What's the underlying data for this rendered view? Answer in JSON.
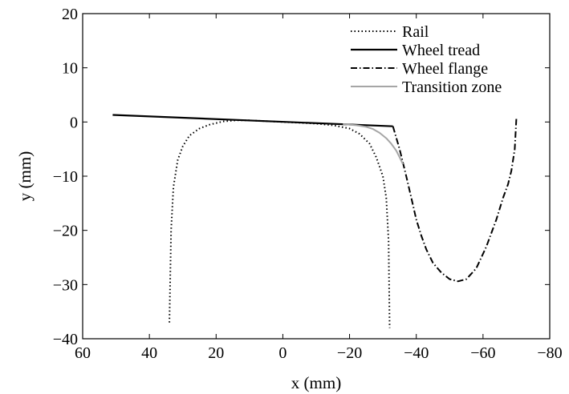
{
  "chart_data": {
    "type": "line",
    "title": "",
    "xlabel": "x (mm)",
    "ylabel": "y (mm)",
    "xlim": [
      60,
      -80
    ],
    "ylim": [
      -40,
      20
    ],
    "x_reversed": true,
    "xticks": [
      60,
      40,
      20,
      0,
      -20,
      -40,
      -60,
      -80
    ],
    "xtick_labels": [
      "60",
      "40",
      "20",
      "0",
      "−20",
      "−40",
      "−60",
      "−80"
    ],
    "yticks": [
      -40,
      -30,
      -20,
      -10,
      0,
      10,
      20
    ],
    "ytick_labels": [
      "−40",
      "−30",
      "−20",
      "−10",
      "0",
      "10",
      "20"
    ],
    "grid": false,
    "legend_position": "top-right",
    "series": [
      {
        "name": "Rail",
        "style": "dotted",
        "color": "#000000",
        "x": [
          34,
          33.5,
          32.8,
          31.5,
          30,
          28,
          25,
          22,
          18,
          14,
          10,
          5,
          0,
          -5,
          -10,
          -15,
          -20,
          -23,
          -26,
          -28,
          -30,
          -31,
          -31.7,
          -32
        ],
        "y": [
          -37,
          -20,
          -12,
          -7,
          -4.5,
          -2.5,
          -1.2,
          -0.5,
          0.1,
          0.3,
          0.3,
          0.15,
          0,
          -0.15,
          -0.3,
          -0.6,
          -1.2,
          -2.2,
          -4,
          -6.5,
          -10,
          -14,
          -22,
          -38
        ]
      },
      {
        "name": "Wheel tread",
        "style": "solid",
        "color": "#000000",
        "x": [
          51,
          -33
        ],
        "y": [
          1.3,
          -0.8
        ]
      },
      {
        "name": "Wheel flange",
        "style": "dashdot",
        "color": "#000000",
        "x": [
          -33,
          -35,
          -37,
          -38.5,
          -40,
          -41.5,
          -43,
          -45,
          -47.5,
          -50,
          -52.5,
          -55,
          -58,
          -61,
          -64,
          -66,
          -67.5,
          -68.5,
          -69.5,
          -70
        ],
        "y": [
          -0.8,
          -5,
          -10,
          -14,
          -18,
          -21,
          -23.5,
          -26,
          -27.8,
          -29,
          -29.4,
          -29,
          -27,
          -23,
          -18,
          -14,
          -11.5,
          -9,
          -5,
          0.6
        ]
      },
      {
        "name": "Transition zone",
        "style": "solid",
        "color": "#a6a6a6",
        "x": [
          -18,
          -22,
          -25,
          -27,
          -29,
          -31,
          -32.5,
          -34,
          -35,
          -36
        ],
        "y": [
          -0.4,
          -0.6,
          -0.9,
          -1.3,
          -2,
          -3,
          -4,
          -5.3,
          -6.5,
          -7.8
        ]
      }
    ]
  }
}
